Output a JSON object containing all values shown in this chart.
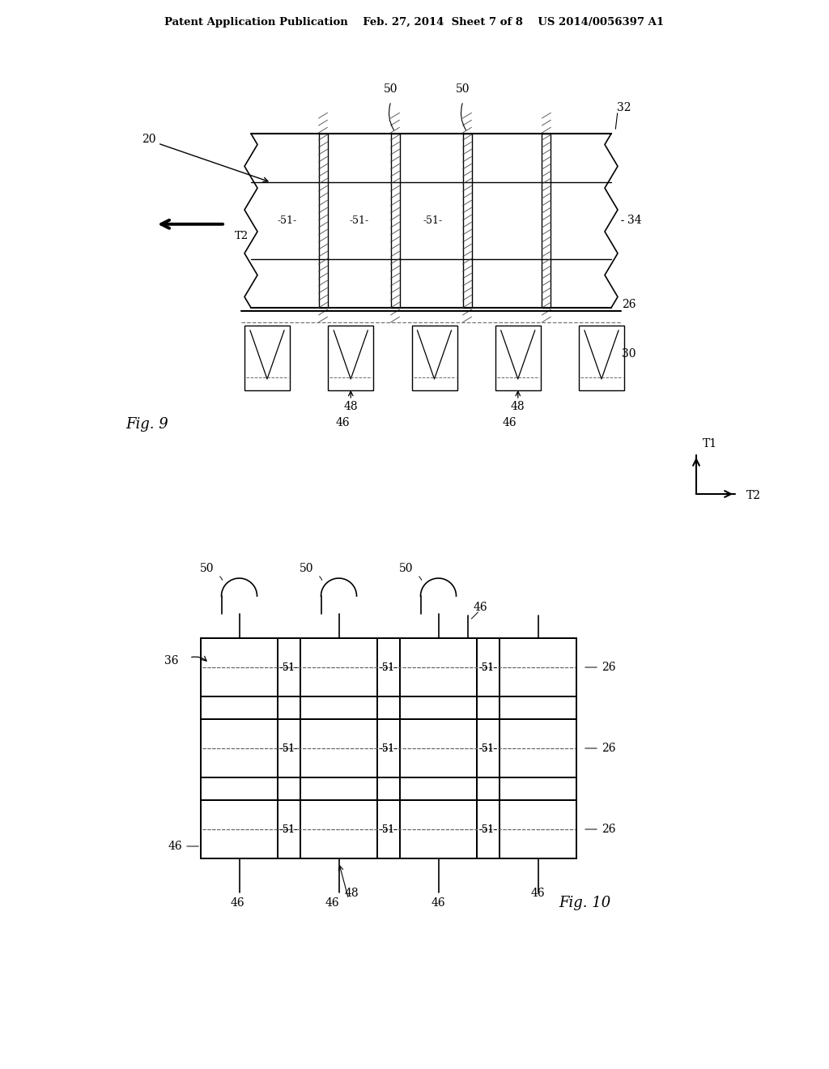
{
  "bg_color": "#ffffff",
  "line_color": "#000000",
  "header_text": "Patent Application Publication    Feb. 27, 2014  Sheet 7 of 8    US 2014/0056397 A1",
  "fig9_label": "Fig. 9",
  "fig10_label": "Fig. 10"
}
